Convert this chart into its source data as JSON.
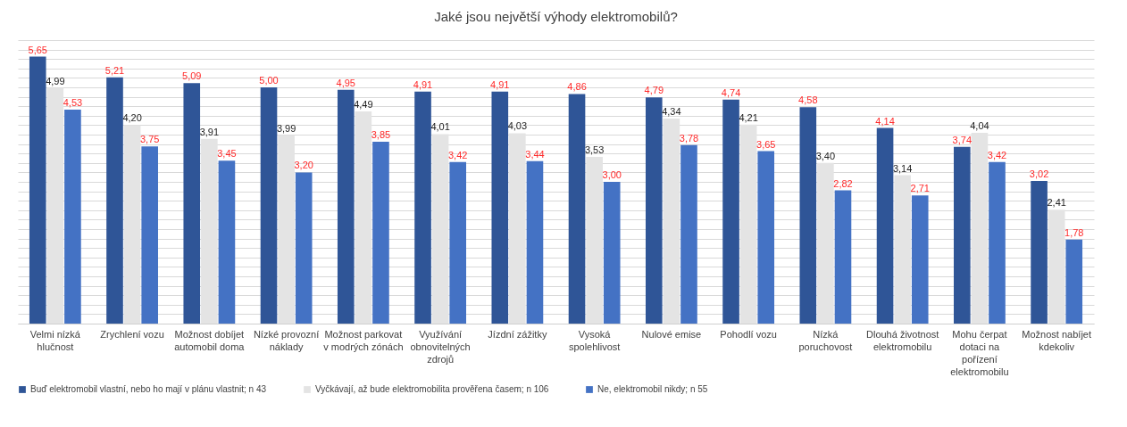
{
  "chart_data": {
    "type": "bar",
    "title": "Jaké jsou největší výhody elektromobilů?",
    "categories": [
      "Velmi nízká hlučnost",
      "Zrychlení vozu",
      "Možnost dobíjet automobil doma",
      "Nízké provozní náklady",
      "Možnost parkovat v modrých zónách",
      "Využívání obnovitelných zdrojů",
      "Jízdní zážitky",
      "Vysoká spolehlivost",
      "Nulové emise",
      "Pohodlí vozu",
      "Nízká poruchovost",
      "Dlouhá životnost elektromobilu",
      "Mohu čerpat dotaci na pořízení elektromobilu",
      "Možnost nabíjet kdekoliv"
    ],
    "series": [
      {
        "name": "Buď elektromobil vlastní, nebo ho mají v plánu vlastnit; n 43",
        "color": "#2f5597",
        "values": [
          5.65,
          5.21,
          5.09,
          5.0,
          4.95,
          4.91,
          4.91,
          4.86,
          4.79,
          4.74,
          4.58,
          4.14,
          3.74,
          3.02
        ],
        "value_labels": [
          "5,65",
          "5,21",
          "5,09",
          "5,00",
          "4,95",
          "4,91",
          "4,91",
          "4,86",
          "4,79",
          "4,74",
          "4,58",
          "4,14",
          "3,74",
          "3,02"
        ]
      },
      {
        "name": "Vyčkávají, až bude elektromobilita prověřena časem; n 106",
        "color": "#e4e4e4",
        "values": [
          4.99,
          4.2,
          3.91,
          3.99,
          4.49,
          4.01,
          4.03,
          3.53,
          4.34,
          4.21,
          3.4,
          3.14,
          4.04,
          2.41
        ],
        "value_labels": [
          "4,99",
          "4,20",
          "3,91",
          "3,99",
          "4,49",
          "4,01",
          "4,03",
          "3,53",
          "4,34",
          "4,21",
          "3,40",
          "3,14",
          "4,04",
          "2,41"
        ]
      },
      {
        "name": "Ne, elektromobil nikdy; n 55",
        "color": "#4472c4",
        "values": [
          4.53,
          3.75,
          3.45,
          3.2,
          3.85,
          3.42,
          3.44,
          3.0,
          3.78,
          3.65,
          2.82,
          2.71,
          3.42,
          1.78
        ],
        "value_labels": [
          "4,53",
          "3,75",
          "3,45",
          "3,20",
          "3,85",
          "3,42",
          "3,44",
          "3,00",
          "3,78",
          "3,65",
          "2,82",
          "2,71",
          "3,42",
          "1,78"
        ]
      }
    ],
    "tick_labels": "x",
    "grid": "y",
    "legend": "bottom"
  }
}
